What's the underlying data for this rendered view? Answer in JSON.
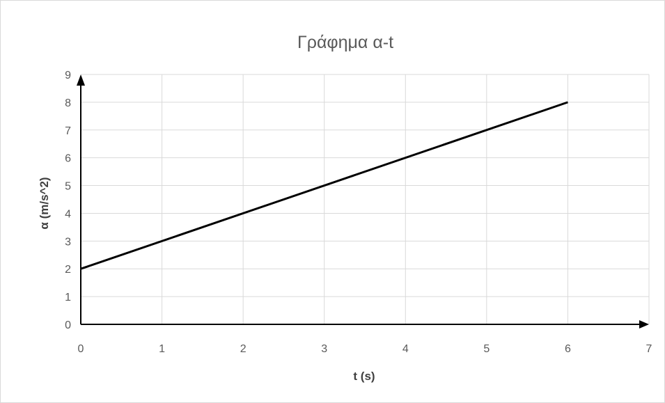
{
  "chart_data": {
    "type": "line",
    "title": "Γράφημα α-t",
    "xlabel": "t (s)",
    "ylabel": "α (m/s^2)",
    "xlim": [
      0,
      7
    ],
    "ylim": [
      0,
      9
    ],
    "x_ticks": [
      0,
      1,
      2,
      3,
      4,
      5,
      6,
      7
    ],
    "y_ticks": [
      0,
      1,
      2,
      3,
      4,
      5,
      6,
      7,
      8,
      9
    ],
    "grid": true,
    "legend": "none",
    "series": [
      {
        "x": [
          0,
          6
        ],
        "y": [
          2,
          8
        ],
        "color": "#000000"
      }
    ]
  }
}
